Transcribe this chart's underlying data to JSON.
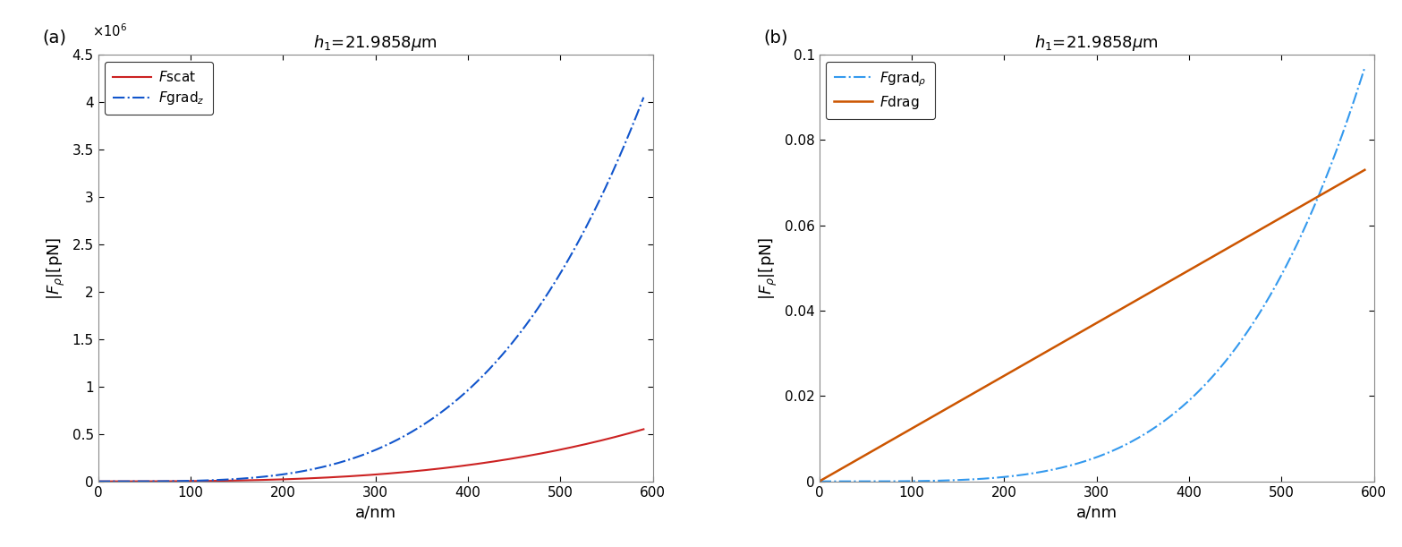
{
  "title": "$h_1$=21.9858$\\mu$m",
  "xlabel": "a/nm",
  "fgrad_z_color": "#1155cc",
  "fscat_color": "#cc2222",
  "fdrag_color": "#cc5500",
  "fgrad_rho_color": "#3399ee",
  "ylim_a": [
    0,
    4500000.0
  ],
  "ylim_b": [
    0,
    0.1
  ],
  "yticks_a": [
    0,
    500000.0,
    1000000.0,
    1500000.0,
    2000000.0,
    2500000.0,
    3000000.0,
    3500000.0,
    4000000.0,
    4500000.0
  ],
  "yticks_a_labels": [
    "0",
    "0.5",
    "1",
    "1.5",
    "2",
    "2.5",
    "3",
    "3.5",
    "4",
    "4.5"
  ],
  "yticks_b": [
    0,
    0.02,
    0.04,
    0.06,
    0.08,
    0.1
  ],
  "yticks_b_labels": [
    "0",
    "0.02",
    "0.04",
    "0.06",
    "0.08",
    "0.1"
  ],
  "xticks": [
    0,
    100,
    200,
    300,
    400,
    500,
    600
  ],
  "x_end": 590
}
